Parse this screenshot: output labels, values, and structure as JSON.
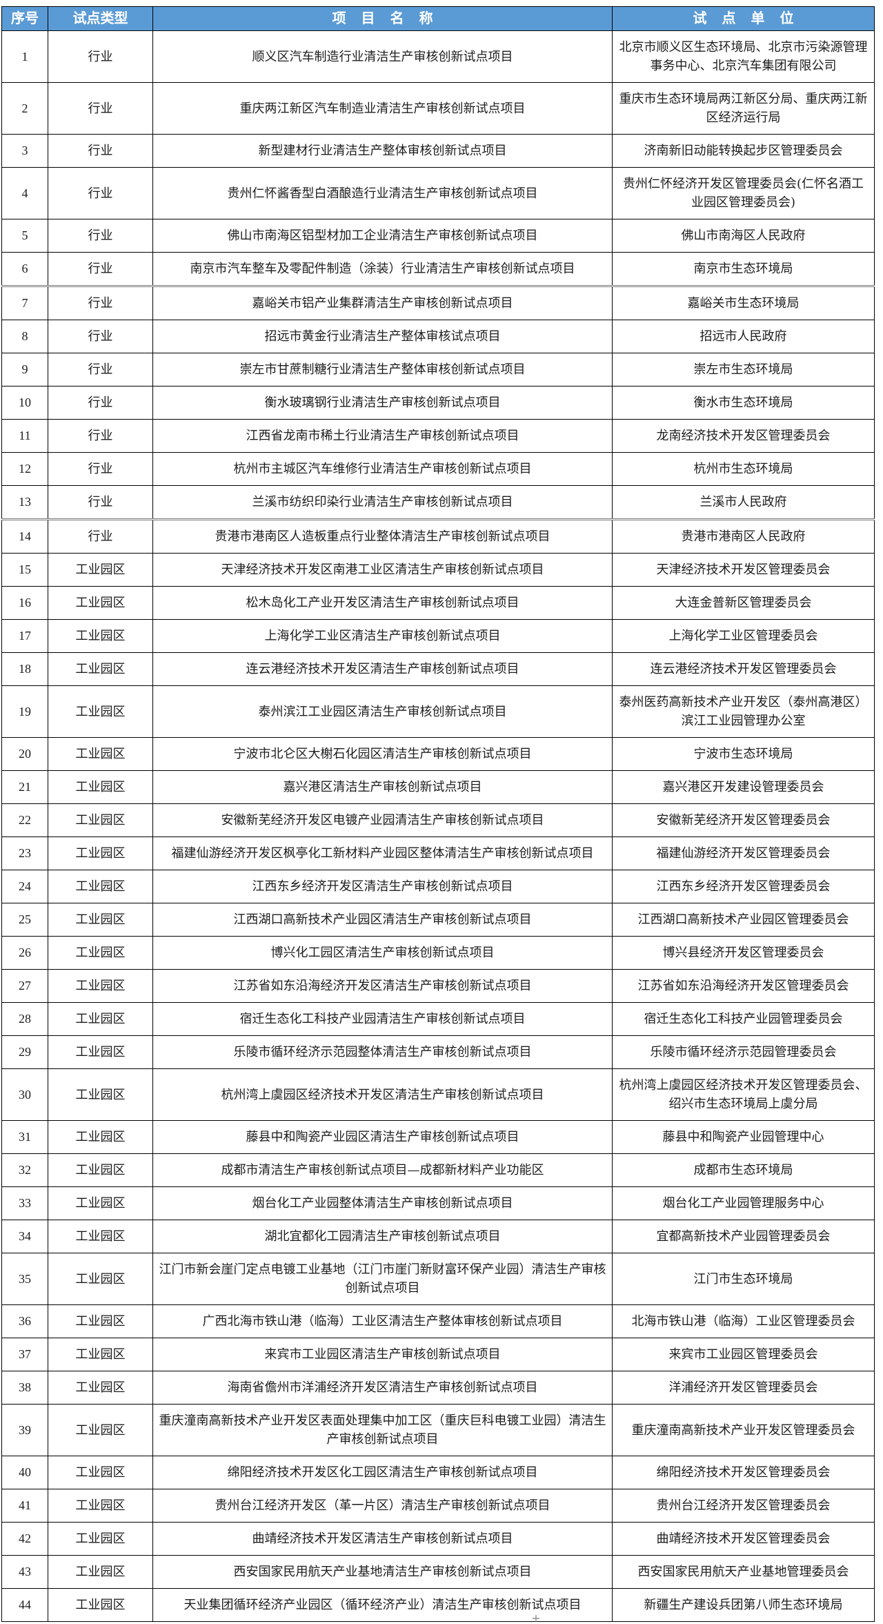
{
  "table": {
    "header": {
      "no": "序号",
      "type": "试点类型",
      "project": "项目名称",
      "unit": "试点单位"
    },
    "rows": [
      {
        "no": "1",
        "type": "行业",
        "project": "顺义区汽车制造行业清洁生产审核创新试点项目",
        "unit": "北京市顺义区生态环境局、北京市污染源管理事务中心、北京汽车集团有限公司"
      },
      {
        "no": "2",
        "type": "行业",
        "project": "重庆两江新区汽车制造业清洁生产审核创新试点项目",
        "unit": "重庆市生态环境局两江新区分局、重庆两江新区经济运行局"
      },
      {
        "no": "3",
        "type": "行业",
        "project": "新型建材行业清洁生产整体审核创新试点项目",
        "unit": "济南新旧动能转换起步区管理委员会"
      },
      {
        "no": "4",
        "type": "行业",
        "project": "贵州仁怀酱香型白酒酿造行业清洁生产审核创新试点项目",
        "unit": "贵州仁怀经济开发区管理委员会(仁怀名酒工业园区管理委员会)"
      },
      {
        "no": "5",
        "type": "行业",
        "project": "佛山市南海区铝型材加工企业清洁生产审核创新试点项目",
        "unit": "佛山市南海区人民政府"
      },
      {
        "no": "6",
        "type": "行业",
        "project": "南京市汽车整车及零配件制造（涂装）行业清洁生产审核创新试点项目",
        "unit": "南京市生态环境局"
      },
      {
        "no": "7",
        "type": "行业",
        "project": "嘉峪关市铝产业集群清洁生产审核创新试点项目",
        "unit": "嘉峪关市生态环境局"
      },
      {
        "no": "8",
        "type": "行业",
        "project": "招远市黄金行业清洁生产整体审核试点项目",
        "unit": "招远市人民政府"
      },
      {
        "no": "9",
        "type": "行业",
        "project": "崇左市甘蔗制糖行业清洁生产整体审核创新试点项目",
        "unit": "崇左市生态环境局"
      },
      {
        "no": "10",
        "type": "行业",
        "project": "衡水玻璃钢行业清洁生产审核创新试点项目",
        "unit": "衡水市生态环境局"
      },
      {
        "no": "11",
        "type": "行业",
        "project": "江西省龙南市稀土行业清洁生产审核创新试点项目",
        "unit": "龙南经济技术开发区管理委员会"
      },
      {
        "no": "12",
        "type": "行业",
        "project": "杭州市主城区汽车维修行业清洁生产审核创新试点项目",
        "unit": "杭州市生态环境局"
      },
      {
        "no": "13",
        "type": "行业",
        "project": "兰溪市纺织印染行业清洁生产审核创新试点项目",
        "unit": "兰溪市人民政府"
      },
      {
        "no": "14",
        "type": "行业",
        "project": "贵港市港南区人造板重点行业整体清洁生产审核创新试点项目",
        "unit": "贵港市港南区人民政府"
      },
      {
        "no": "15",
        "type": "工业园区",
        "project": "天津经济技术开发区南港工业区清洁生产审核创新试点项目",
        "unit": "天津经济技术开发区管理委员会"
      },
      {
        "no": "16",
        "type": "工业园区",
        "project": "松木岛化工产业开发区清洁生产审核创新试点项目",
        "unit": "大连金普新区管理委员会"
      },
      {
        "no": "17",
        "type": "工业园区",
        "project": "上海化学工业区清洁生产审核创新试点项目",
        "unit": "上海化学工业区管理委员会"
      },
      {
        "no": "18",
        "type": "工业园区",
        "project": "连云港经济技术开发区清洁生产审核创新试点项目",
        "unit": "连云港经济技术开发区管理委员会"
      },
      {
        "no": "19",
        "type": "工业园区",
        "project": "泰州滨江工业园区清洁生产审核创新试点项目",
        "unit": "泰州医药高新技术产业开发区（泰州高港区）滨江工业园管理办公室"
      },
      {
        "no": "20",
        "type": "工业园区",
        "project": "宁波市北仑区大榭石化园区清洁生产审核创新试点项目",
        "unit": "宁波市生态环境局"
      },
      {
        "no": "21",
        "type": "工业园区",
        "project": "嘉兴港区清洁生产审核创新试点项目",
        "unit": "嘉兴港区开发建设管理委员会"
      },
      {
        "no": "22",
        "type": "工业园区",
        "project": "安徽新芜经济开发区电镀产业园清洁生产审核创新试点项目",
        "unit": "安徽新芜经济开发区管理委员会"
      },
      {
        "no": "23",
        "type": "工业园区",
        "project": "福建仙游经济开发区枫亭化工新材料产业园区整体清洁生产审核创新试点项目",
        "unit": "福建仙游经济开发区管理委员会"
      },
      {
        "no": "24",
        "type": "工业园区",
        "project": "江西东乡经济开发区清洁生产审核创新试点项目",
        "unit": "江西东乡经济开发区管理委员会"
      },
      {
        "no": "25",
        "type": "工业园区",
        "project": "江西湖口高新技术产业园区清洁生产审核创新试点项目",
        "unit": "江西湖口高新技术产业园区管理委员会"
      },
      {
        "no": "26",
        "type": "工业园区",
        "project": "博兴化工园区清洁生产审核创新试点项目",
        "unit": "博兴县经济开发区管理委员会"
      },
      {
        "no": "27",
        "type": "工业园区",
        "project": "江苏省如东沿海经济开发区清洁生产审核创新试点项目",
        "unit": "江苏省如东沿海经济开发区管理委员会"
      },
      {
        "no": "28",
        "type": "工业园区",
        "project": "宿迁生态化工科技产业园清洁生产审核创新试点项目",
        "unit": "宿迁生态化工科技产业园管理委员会"
      },
      {
        "no": "29",
        "type": "工业园区",
        "project": "乐陵市循环经济示范园整体清洁生产审核创新试点项目",
        "unit": "乐陵市循环经济示范园管理委员会"
      },
      {
        "no": "30",
        "type": "工业园区",
        "project": "杭州湾上虞园区经济技术开发区清洁生产审核创新试点项目",
        "unit": "杭州湾上虞园区经济技术开发区管理委员会、绍兴市生态环境局上虞分局"
      },
      {
        "no": "31",
        "type": "工业园区",
        "project": "藤县中和陶瓷产业园区清洁生产审核创新试点项目",
        "unit": "藤县中和陶瓷产业园管理中心"
      },
      {
        "no": "32",
        "type": "工业园区",
        "project": "成都市清洁生产审核创新试点项目—成都新材料产业功能区",
        "unit": "成都市生态环境局"
      },
      {
        "no": "33",
        "type": "工业园区",
        "project": "烟台化工产业园整体清洁生产审核创新试点项目",
        "unit": "烟台化工产业园管理服务中心"
      },
      {
        "no": "34",
        "type": "工业园区",
        "project": "湖北宜都化工园清洁生产审核创新试点项目",
        "unit": "宜都高新技术产业园管理委员会"
      },
      {
        "no": "35",
        "type": "工业园区",
        "project": "江门市新会崖门定点电镀工业基地（江门市崖门新财富环保产业园）清洁生产审核创新试点项目",
        "unit": "江门市生态环境局"
      },
      {
        "no": "36",
        "type": "工业园区",
        "project": "广西北海市铁山港（临海）工业区清洁生产整体审核创新试点项目",
        "unit": "北海市铁山港（临海）工业区管理委员会"
      },
      {
        "no": "37",
        "type": "工业园区",
        "project": "来宾市工业园区清洁生产审核创新试点项目",
        "unit": "来宾市工业园区管理委员会"
      },
      {
        "no": "38",
        "type": "工业园区",
        "project": "海南省儋州市洋浦经济开发区清洁生产审核创新试点项目",
        "unit": "洋浦经济开发区管理委员会"
      },
      {
        "no": "39",
        "type": "工业园区",
        "project": "重庆潼南高新技术产业开发区表面处理集中加工区（重庆巨科电镀工业园）清洁生产审核创新试点项目",
        "unit": "重庆潼南高新技术产业开发区管理委员会"
      },
      {
        "no": "40",
        "type": "工业园区",
        "project": "绵阳经济技术开发区化工园区清洁生产审核创新试点项目",
        "unit": "绵阳经济技术开发区管理委员会"
      },
      {
        "no": "41",
        "type": "工业园区",
        "project": "贵州台江经济开发区（革一片区）清洁生产审核创新试点项目",
        "unit": "贵州台江经济开发区管理委员会"
      },
      {
        "no": "42",
        "type": "工业园区",
        "project": "曲靖经济技术开发区清洁生产审核创新试点项目",
        "unit": "曲靖经济技术开发区管理委员会"
      },
      {
        "no": "43",
        "type": "工业园区",
        "project": "西安国家民用航天产业基地清洁生产审核创新试点项目",
        "unit": "西安国家民用航天产业基地管理委员会"
      },
      {
        "no": "44",
        "type": "工业园区",
        "project": "天业集团循环经济产业园区（循环经济产业）清洁生产审核创新试点项目",
        "unit": "新疆生产建设兵团第八师生态环境局"
      }
    ],
    "thick_border_above_rows": [
      7,
      14
    ]
  },
  "colors": {
    "header_bg": "#5B9BD5",
    "header_text": "#FFFFFF",
    "body_text": "#1C1C1C",
    "border": "#000000"
  },
  "icons": {
    "plus": "+"
  }
}
